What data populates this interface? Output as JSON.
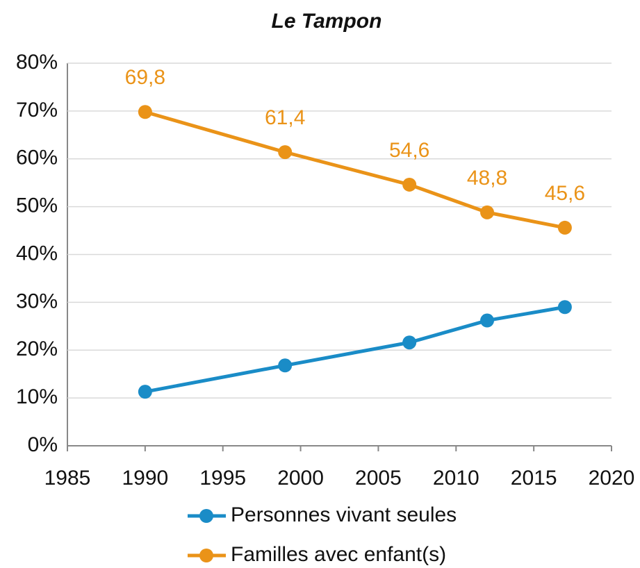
{
  "chart_data": {
    "type": "line",
    "title": "Le Tampon",
    "x": [
      1990,
      1999,
      2007,
      2012,
      2017
    ],
    "series": [
      {
        "name": "Personnes vivant seules",
        "color": "#1a8cc7",
        "values": [
          11.3,
          16.8,
          21.6,
          26.2,
          29.0
        ]
      },
      {
        "name": "Familles avec enfant(s)",
        "color": "#ea9318",
        "values": [
          69.8,
          61.4,
          54.6,
          48.8,
          45.6
        ],
        "value_labels": [
          "69,8",
          "61,4",
          "54,6",
          "48,8",
          "45,6"
        ]
      }
    ],
    "xlim": [
      1985,
      2020
    ],
    "xticks": [
      1985,
      1990,
      1995,
      2000,
      2005,
      2010,
      2015,
      2020
    ],
    "ylim": [
      0,
      80
    ],
    "yticks": [
      {
        "value": 0,
        "label": "0%"
      },
      {
        "value": 10,
        "label": "10%"
      },
      {
        "value": 20,
        "label": "20%"
      },
      {
        "value": 30,
        "label": "30%"
      },
      {
        "value": 40,
        "label": "40%"
      },
      {
        "value": 50,
        "label": "50%"
      },
      {
        "value": 60,
        "label": "60%"
      },
      {
        "value": 70,
        "label": "70%"
      },
      {
        "value": 80,
        "label": "80%"
      }
    ],
    "grid": true,
    "legend": "bottom"
  }
}
